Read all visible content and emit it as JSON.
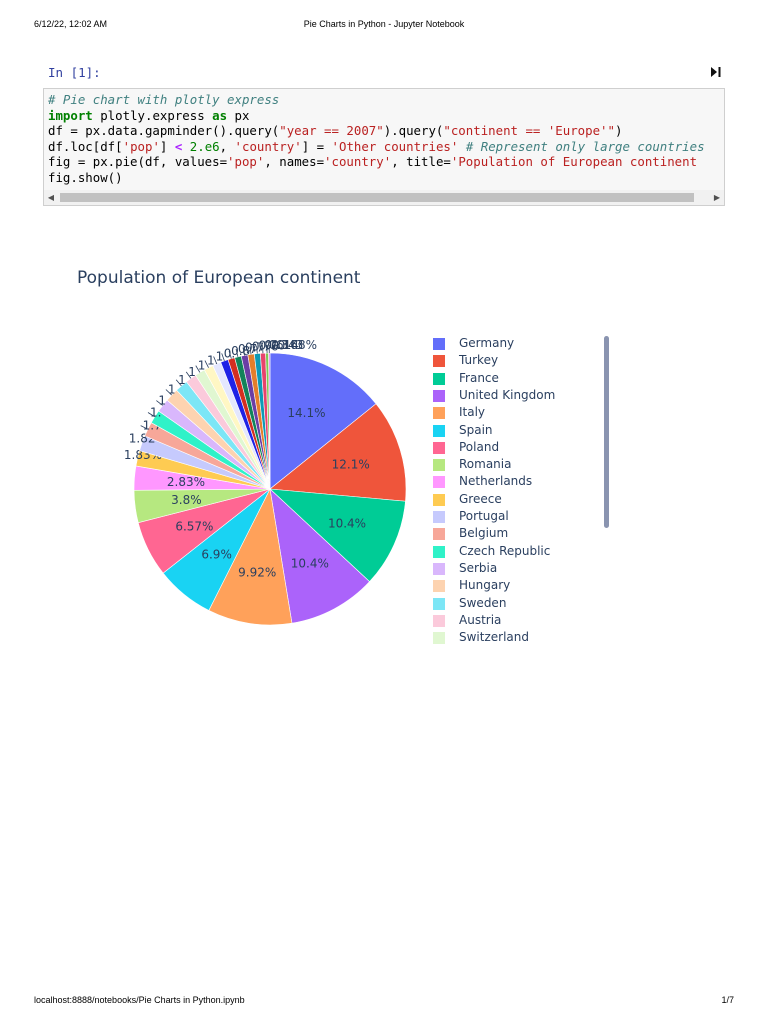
{
  "print_header": {
    "datetime": "6/12/22, 12:02 AM",
    "title": "Pie Charts in Python - Jupyter Notebook"
  },
  "print_footer": {
    "url": "localhost:8888/notebooks/Pie Charts in Python.ipynb",
    "page": "1/7"
  },
  "cell": {
    "prompt": "In [1]:",
    "run_icon": "run-cell-icon",
    "code_lines": [
      [
        {
          "t": "# Pie chart with plotly express",
          "c": "c-cm"
        }
      ],
      [
        {
          "t": "import",
          "c": "c-kw"
        },
        {
          "t": " plotly.express ",
          "c": ""
        },
        {
          "t": "as",
          "c": "c-kw"
        },
        {
          "t": " px",
          "c": ""
        }
      ],
      [
        {
          "t": "df = px.data.gapminder().query(",
          "c": ""
        },
        {
          "t": "\"year == 2007\"",
          "c": "c-st"
        },
        {
          "t": ").query(",
          "c": ""
        },
        {
          "t": "\"continent == 'Europe'\"",
          "c": "c-st"
        },
        {
          "t": ")",
          "c": ""
        }
      ],
      [
        {
          "t": "df.loc[df[",
          "c": ""
        },
        {
          "t": "'pop'",
          "c": "c-st"
        },
        {
          "t": "] ",
          "c": ""
        },
        {
          "t": "<",
          "c": "c-op"
        },
        {
          "t": " ",
          "c": ""
        },
        {
          "t": "2.e6",
          "c": "c-nm"
        },
        {
          "t": ", ",
          "c": ""
        },
        {
          "t": "'country'",
          "c": "c-st"
        },
        {
          "t": "] = ",
          "c": ""
        },
        {
          "t": "'Other countries'",
          "c": "c-st"
        },
        {
          "t": " ",
          "c": ""
        },
        {
          "t": "# Represent only large countries",
          "c": "c-cm"
        }
      ],
      [
        {
          "t": "fig = px.pie(df, values=",
          "c": ""
        },
        {
          "t": "'pop'",
          "c": "c-st"
        },
        {
          "t": ", names=",
          "c": ""
        },
        {
          "t": "'country'",
          "c": "c-st"
        },
        {
          "t": ", title=",
          "c": ""
        },
        {
          "t": "'Population of European continent",
          "c": "c-st"
        }
      ],
      [
        {
          "t": "fig.show()",
          "c": ""
        }
      ]
    ],
    "scroll_left_icon": "◀",
    "scroll_right_icon": "▶"
  },
  "colors": {
    "title": "#2a3f5f",
    "legend_scrollbar": "#8a94b0"
  },
  "chart_data": {
    "type": "pie",
    "title": "Population of European continent",
    "legend_position": "right",
    "legend_visible_entries": 18,
    "slices": [
      {
        "name": "Germany",
        "percent": 14.1,
        "label": "14.1%",
        "color": "#636efa"
      },
      {
        "name": "Turkey",
        "percent": 12.1,
        "label": "12.1%",
        "color": "#ef553b"
      },
      {
        "name": "France",
        "percent": 10.4,
        "label": "10.4%",
        "color": "#00cc96"
      },
      {
        "name": "United Kingdom",
        "percent": 10.4,
        "label": "10.4%",
        "color": "#ab63fa"
      },
      {
        "name": "Italy",
        "percent": 9.92,
        "label": "9.92%",
        "color": "#ffa15a"
      },
      {
        "name": "Spain",
        "percent": 6.9,
        "label": "6.9%",
        "color": "#19d3f3"
      },
      {
        "name": "Poland",
        "percent": 6.57,
        "label": "6.57%",
        "color": "#ff6692"
      },
      {
        "name": "Romania",
        "percent": 3.8,
        "label": "3.8%",
        "color": "#b6e880"
      },
      {
        "name": "Netherlands",
        "percent": 2.83,
        "label": "2.83%",
        "color": "#ff97ff"
      },
      {
        "name": "Greece",
        "percent": 1.83,
        "label": "1.83%",
        "color": "#fecb52"
      },
      {
        "name": "Portugal",
        "percent": 1.82,
        "label": "1.82",
        "color": "#c6cafd"
      },
      {
        "name": "Belgium",
        "percent": 1.7,
        "label": "1.7",
        "color": "#f7a799"
      },
      {
        "name": "Czech Republic",
        "percent": 1.6,
        "label": "1.",
        "color": "#2ff2c8"
      },
      {
        "name": "Serbia",
        "percent": 1.6,
        "label": "1",
        "color": "#d9b7fc"
      },
      {
        "name": "Hungary",
        "percent": 1.6,
        "label": "1",
        "color": "#fdd3b0"
      },
      {
        "name": "Sweden",
        "percent": 1.5,
        "label": "1",
        "color": "#7ce6f6"
      },
      {
        "name": "Austria",
        "percent": 1.3,
        "label": "1",
        "color": "#fbcadb"
      },
      {
        "name": "Switzerland",
        "percent": 1.2,
        "label": "1",
        "color": "#e0f7d1"
      },
      {
        "percent": 1.1,
        "label": "1.",
        "color": "#fff7c4"
      },
      {
        "percent": 1.0,
        "label": "1",
        "color": "#e4e7fe"
      },
      {
        "percent": 0.9,
        "label": "0.",
        "color": "#1f22e6"
      },
      {
        "percent": 0.8,
        "label": "0.8",
        "color": "#d42e20"
      },
      {
        "percent": 0.78,
        "label": "0.7",
        "color": "#12835a"
      },
      {
        "percent": 0.78,
        "label": "0.7",
        "color": "#6b3ea5"
      },
      {
        "percent": 0.76,
        "label": "0.76",
        "color": "#e57e2b"
      },
      {
        "percent": 0.7,
        "label": "0.70",
        "color": "#0e9ab5"
      },
      {
        "percent": 0.614,
        "label": "0.614",
        "color": "#e8436c"
      },
      {
        "percent": 0.343,
        "label": "0.343",
        "color": "#7fc753"
      },
      {
        "percent": 0.168,
        "label": "0.168%",
        "color": "#e56ee3"
      }
    ]
  }
}
